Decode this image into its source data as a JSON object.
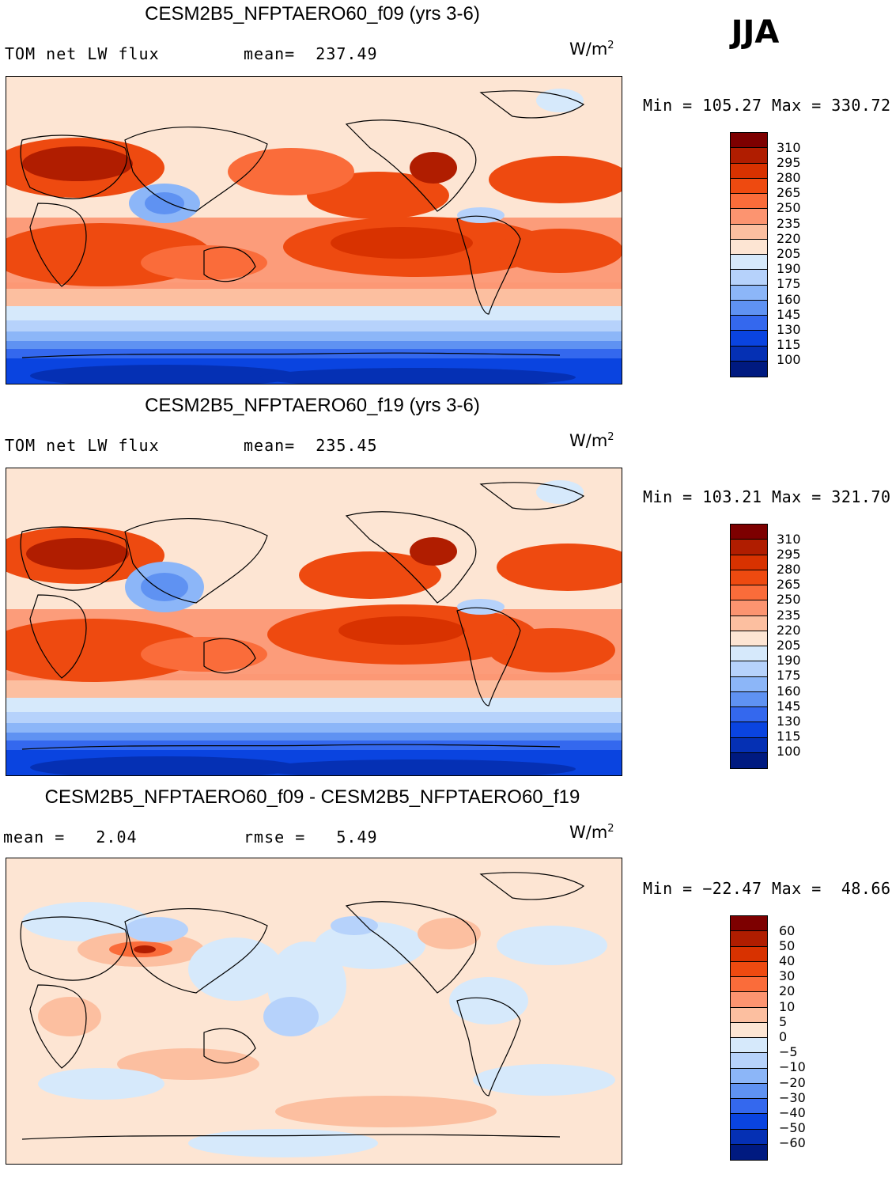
{
  "season": "JJA",
  "units_base": "W/m",
  "units_exp": "2",
  "panels": [
    {
      "title": "CESM2B5_NFPTAERO60_f09 (yrs 3-6)",
      "left_label": "TOM net LW flux",
      "stat_label": "mean=  237.49",
      "minmax": "Min = 105.27 Max = 330.72",
      "ticks": [
        "310",
        "295",
        "280",
        "265",
        "250",
        "235",
        "220",
        "205",
        "190",
        "175",
        "160",
        "145",
        "130",
        "115",
        "100"
      ]
    },
    {
      "title": "CESM2B5_NFPTAERO60_f19 (yrs 3-6)",
      "left_label": "TOM net LW flux",
      "stat_label": "mean=  235.45",
      "minmax": "Min = 103.21 Max = 321.70",
      "ticks": [
        "310",
        "295",
        "280",
        "265",
        "250",
        "235",
        "220",
        "205",
        "190",
        "175",
        "160",
        "145",
        "130",
        "115",
        "100"
      ]
    },
    {
      "title": "CESM2B5_NFPTAERO60_f09 - CESM2B5_NFPTAERO60_f19",
      "left_label": "mean =   2.04",
      "stat_label": "rmse =   5.49",
      "minmax": "Min = −22.47 Max =  48.66",
      "ticks": [
        "60",
        "50",
        "40",
        "30",
        "20",
        "10",
        "5",
        "0",
        "−5",
        "−10",
        "−20",
        "−30",
        "−40",
        "−50",
        "−60"
      ]
    }
  ],
  "colors": {
    "scale": [
      "#7d0000",
      "#b01d00",
      "#d83200",
      "#ee4a10",
      "#fa6c3a",
      "#fc9470",
      "#fcbfa0",
      "#fde5d3",
      "#d6e9fb",
      "#b6d2fb",
      "#8cb6f8",
      "#5f92f2",
      "#3468ee",
      "#0a44e0",
      "#0530b4",
      "#001a80"
    ]
  }
}
